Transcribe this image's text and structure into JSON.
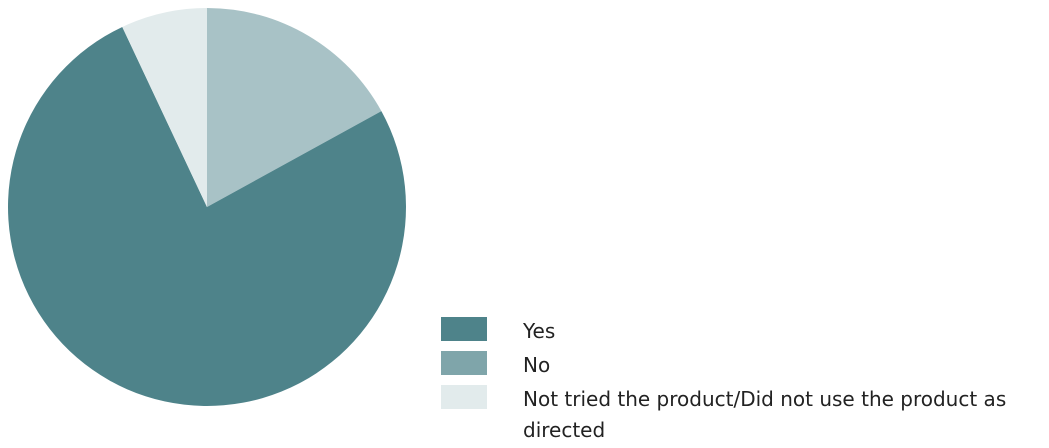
{
  "chart_data": {
    "type": "pie",
    "series": [
      {
        "name": "Yes",
        "value": 76,
        "color": "#4e838a"
      },
      {
        "name": "No",
        "value": 17,
        "color": "#a8c2c6"
      },
      {
        "name": "Not tried the product/Did not use the product as directed",
        "value": 7,
        "color": "#e2ebec"
      }
    ],
    "start_angle_deg": 0,
    "direction": "clockwise",
    "legend_position": "bottom-right",
    "legend_swatch_colors": [
      "#4e838a",
      "#7fa5aa",
      "#e2ebec"
    ]
  }
}
